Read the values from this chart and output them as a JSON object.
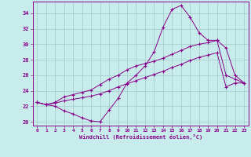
{
  "xlabel": "Windchill (Refroidissement éolien,°C)",
  "xlim": [
    -0.5,
    23.5
  ],
  "ylim": [
    19.5,
    35.5
  ],
  "xticks": [
    0,
    1,
    2,
    3,
    4,
    5,
    6,
    7,
    8,
    9,
    10,
    11,
    12,
    13,
    14,
    15,
    16,
    17,
    18,
    19,
    20,
    21,
    22,
    23
  ],
  "yticks": [
    20,
    22,
    24,
    26,
    28,
    30,
    32,
    34
  ],
  "bg_color": "#c8ecec",
  "line_color": "#880088",
  "grid_color": "#a0c8c8",
  "s1": [
    22.5,
    22.2,
    22.0,
    21.4,
    21.0,
    20.5,
    20.1,
    20.0,
    21.5,
    23.0,
    25.0,
    26.0,
    27.2,
    29.0,
    32.2,
    34.5,
    35.0,
    33.5,
    31.5,
    30.5,
    30.5,
    29.5,
    26.0,
    25.0
  ],
  "s2": [
    22.5,
    22.2,
    22.5,
    23.2,
    23.5,
    23.8,
    24.1,
    24.8,
    25.5,
    26.0,
    26.7,
    27.2,
    27.5,
    27.8,
    28.2,
    28.7,
    29.2,
    29.7,
    30.0,
    30.2,
    30.5,
    26.0,
    25.5,
    25.0
  ],
  "s3": [
    22.5,
    22.2,
    22.4,
    22.7,
    22.9,
    23.1,
    23.3,
    23.6,
    24.0,
    24.5,
    24.9,
    25.3,
    25.7,
    26.1,
    26.5,
    27.0,
    27.4,
    27.9,
    28.3,
    28.6,
    28.9,
    24.5,
    25.0,
    25.0
  ]
}
